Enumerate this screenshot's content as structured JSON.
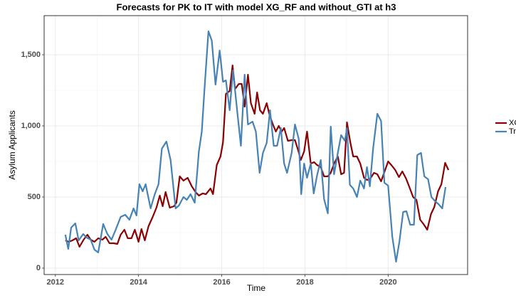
{
  "chart_data": {
    "type": "line",
    "title": "Forecasts for PK to IT with model XG_RF and without_GTI at h3",
    "x_label": "Time",
    "y_label": "Asylum Applicants",
    "xlim": [
      2011.73,
      2021.91
    ],
    "xticks": [
      2012,
      2014,
      2016,
      2018,
      2020
    ],
    "ylim": [
      -45,
      1775
    ],
    "yticks": [
      0,
      500,
      {
        "value": 1000,
        "label": "1,000"
      },
      {
        "value": 1500,
        "label": "1,500"
      }
    ],
    "grid": true,
    "legend": "right",
    "series": [
      {
        "name": "XG_RF",
        "color": "#8b0000",
        "x": [
          2012.24,
          2012.32,
          2012.41,
          2012.5,
          2012.58,
          2012.68,
          2012.77,
          2012.85,
          2012.94,
          2013.03,
          2013.13,
          2013.21,
          2013.3,
          2013.4,
          2013.49,
          2013.57,
          2013.66,
          2013.74,
          2013.83,
          2013.91,
          2014.0,
          2014.07,
          2014.15,
          2014.24,
          2014.34,
          2014.43,
          2014.51,
          2014.58,
          2014.65,
          2014.75,
          2014.85,
          2014.91,
          2014.99,
          2015.08,
          2015.18,
          2015.28,
          2015.37,
          2015.45,
          2015.54,
          2015.62,
          2015.73,
          2015.79,
          2015.88,
          2015.97,
          2016.03,
          2016.1,
          2016.19,
          2016.26,
          2016.32,
          2016.41,
          2016.48,
          2016.55,
          2016.63,
          2016.7,
          2016.79,
          2016.85,
          2016.92,
          2016.99,
          2017.08,
          2017.15,
          2017.23,
          2017.3,
          2017.37,
          2017.44,
          2017.5,
          2017.59,
          2017.68,
          2017.76,
          2017.83,
          2017.9,
          2017.98,
          2018.05,
          2018.14,
          2018.22,
          2018.29,
          2018.38,
          2018.46,
          2018.55,
          2018.62,
          2018.7,
          2018.79,
          2018.87,
          2018.94,
          2019.01,
          2019.09,
          2019.16,
          2019.25,
          2019.33,
          2019.42,
          2019.49,
          2019.56,
          2019.66,
          2019.74,
          2019.83,
          2020.0,
          2020.09,
          2020.17,
          2020.26,
          2020.34,
          2020.43,
          2020.51,
          2020.6,
          2020.68,
          2020.77,
          2020.85,
          2020.94,
          2021.03,
          2021.11,
          2021.2,
          2021.28,
          2021.37,
          2021.45
        ],
        "values": [
          195,
          185,
          195,
          210,
          150,
          200,
          235,
          200,
          185,
          210,
          200,
          220,
          175,
          175,
          170,
          235,
          270,
          210,
          210,
          270,
          185,
          275,
          195,
          295,
          360,
          425,
          510,
          435,
          535,
          425,
          435,
          460,
          645,
          615,
          635,
          575,
          535,
          510,
          525,
          520,
          560,
          520,
          725,
          785,
          885,
          1225,
          1245,
          1425,
          1260,
          1295,
          1295,
          1135,
          1360,
          1160,
          1085,
          1235,
          1110,
          1085,
          1160,
          1075,
          1010,
          960,
          1000,
          960,
          985,
          895,
          900,
          900,
          835,
          760,
          820,
          960,
          735,
          745,
          725,
          710,
          645,
          645,
          670,
          735,
          785,
          660,
          670,
          1025,
          885,
          785,
          785,
          735,
          635,
          620,
          625,
          670,
          660,
          610,
          750,
          720,
          690,
          640,
          680,
          630,
          570,
          500,
          480,
          340,
          310,
          270,
          380,
          430,
          540,
          590,
          740,
          690
        ]
      },
      {
        "name": "Truth",
        "color": "#4682b4",
        "x": [
          2012.24,
          2012.31,
          2012.38,
          2012.48,
          2012.56,
          2012.67,
          2012.75,
          2012.85,
          2012.94,
          2013.03,
          2013.15,
          2013.25,
          2013.35,
          2013.45,
          2013.57,
          2013.68,
          2013.78,
          2013.88,
          2013.95,
          2014.02,
          2014.1,
          2014.17,
          2014.29,
          2014.39,
          2014.48,
          2014.56,
          2014.67,
          2014.77,
          2014.89,
          2014.97,
          2015.08,
          2015.16,
          2015.25,
          2015.35,
          2015.45,
          2015.52,
          2015.59,
          2015.68,
          2015.76,
          2015.85,
          2015.95,
          2016.03,
          2016.1,
          2016.19,
          2016.27,
          2016.38,
          2016.46,
          2016.55,
          2016.63,
          2016.74,
          2016.82,
          2016.91,
          2016.99,
          2017.08,
          2017.16,
          2017.25,
          2017.33,
          2017.42,
          2017.5,
          2017.57,
          2017.68,
          2017.76,
          2017.85,
          2017.91,
          2017.98,
          2018.05,
          2018.14,
          2018.21,
          2018.29,
          2018.38,
          2018.46,
          2018.55,
          2018.62,
          2018.7,
          2018.79,
          2018.87,
          2018.96,
          2019.01,
          2019.08,
          2019.16,
          2019.25,
          2019.33,
          2019.42,
          2019.49,
          2019.56,
          2019.64,
          2019.74,
          2019.83,
          2019.91,
          2020.0,
          2020.1,
          2020.19,
          2020.27,
          2020.36,
          2020.44,
          2020.53,
          2020.62,
          2020.7,
          2020.79,
          2020.87,
          2020.96,
          2021.04,
          2021.13,
          2021.21,
          2021.3,
          2021.38
        ],
        "values": [
          235,
          135,
          285,
          315,
          195,
          240,
          215,
          200,
          130,
          110,
          310,
          240,
          200,
          270,
          360,
          375,
          340,
          420,
          370,
          590,
          540,
          590,
          420,
          520,
          590,
          840,
          890,
          760,
          420,
          440,
          500,
          480,
          520,
          460,
          820,
          960,
          1280,
          1665,
          1600,
          1290,
          1530,
          1310,
          1320,
          1110,
          1390,
          1080,
          860,
          1360,
          1010,
          1030,
          960,
          670,
          810,
          880,
          1110,
          860,
          860,
          985,
          735,
          670,
          810,
          1010,
          910,
          520,
          735,
          635,
          735,
          525,
          650,
          760,
          485,
          385,
          995,
          660,
          810,
          935,
          895,
          985,
          585,
          560,
          500,
          615,
          560,
          710,
          575,
          845,
          1085,
          1035,
          600,
          580,
          220,
          45,
          185,
          395,
          400,
          305,
          305,
          795,
          810,
          645,
          625,
          500,
          470,
          450,
          420,
          570
        ]
      }
    ]
  }
}
